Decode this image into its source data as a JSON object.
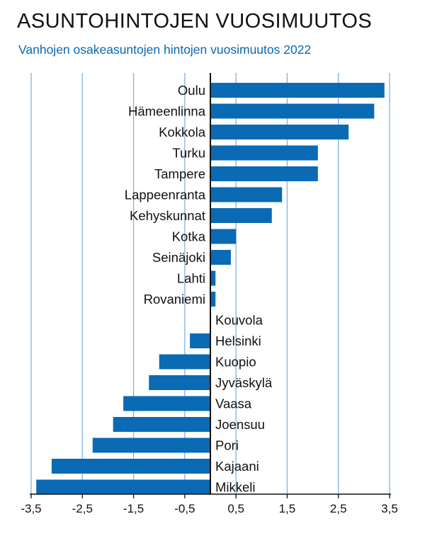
{
  "title": "ASUNTOHINTOJEN VUOSIMUUTOS",
  "subtitle": "Vanhojen osakeasuntojen hintojen vuosimuutos 2022",
  "colors": {
    "bar": "#0a6ab4",
    "grid": "#7fb2e5",
    "zero_axis": "#111111"
  },
  "chart_data": {
    "type": "bar",
    "orientation": "horizontal",
    "title": "ASUNTOHINTOJEN VUOSIMUUTOS",
    "subtitle": "Vanhojen osakeasuntojen hintojen vuosimuutos 2022",
    "xlabel": "",
    "ylabel": "",
    "xlim": [
      -3.5,
      3.5
    ],
    "xticks": [
      -3.5,
      -2.5,
      -1.5,
      -0.5,
      0.5,
      1.5,
      2.5,
      3.5
    ],
    "xtick_labels": [
      "-3,5",
      "-2,5",
      "-1,5",
      "-0,5",
      "0,5",
      "1,5",
      "2,5",
      "3,5"
    ],
    "grid": "vertical",
    "categories": [
      "Oulu",
      "Hämeenlinna",
      "Kokkola",
      "Turku",
      "Tampere",
      "Lappeenranta",
      "Kehyskunnat",
      "Kotka",
      "Seinäjoki",
      "Lahti",
      "Rovaniemi",
      "Kouvola",
      "Helsinki",
      "Kuopio",
      "Jyväskylä",
      "Vaasa",
      "Joensuu",
      "Pori",
      "Kajaani",
      "Mikkeli"
    ],
    "values": [
      3.4,
      3.2,
      2.7,
      2.1,
      2.1,
      1.4,
      1.2,
      0.5,
      0.4,
      0.1,
      0.1,
      0.0,
      -0.4,
      -1.0,
      -1.2,
      -1.7,
      -1.9,
      -2.3,
      -3.1,
      -3.4
    ]
  }
}
